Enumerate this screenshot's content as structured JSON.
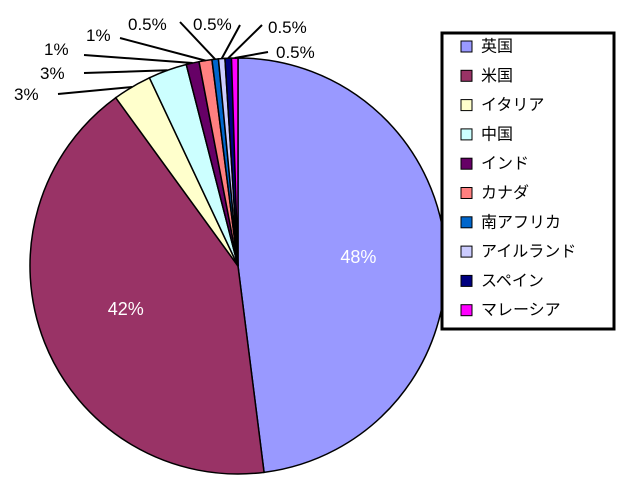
{
  "chart_data": {
    "type": "pie",
    "title": "",
    "categories": [
      "英国",
      "米国",
      "イタリア",
      "中国",
      "インド",
      "カナダ",
      "南アフリカ",
      "アイルランド",
      "スペイン",
      "マレーシア"
    ],
    "values": [
      48,
      42,
      3,
      3,
      1,
      1,
      0.5,
      0.5,
      0.5,
      0.5
    ],
    "labels": [
      "48%",
      "42%",
      "3%",
      "3%",
      "1%",
      "1%",
      "0.5%",
      "0.5%",
      "0.5%",
      "0.5%"
    ],
    "colors": [
      "#9999ff",
      "#993366",
      "#ffffcc",
      "#ccffff",
      "#660066",
      "#ff8080",
      "#0066cc",
      "#ccccff",
      "#000080",
      "#ff00ff"
    ],
    "legend_position": "right"
  }
}
